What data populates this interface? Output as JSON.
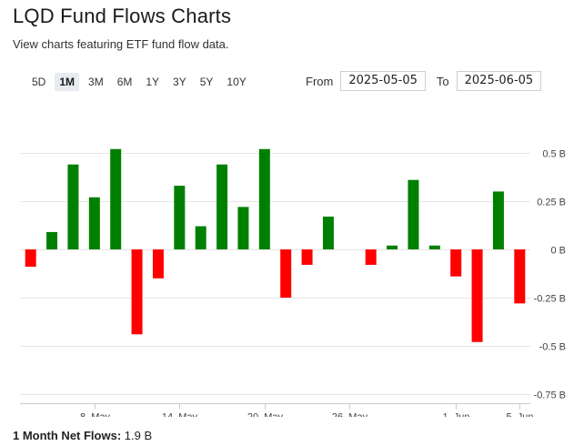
{
  "header": {
    "title": "LQD Fund Flows Charts",
    "subtitle": "View charts featuring ETF fund flow data."
  },
  "ranges": [
    {
      "label": "5D",
      "active": false
    },
    {
      "label": "1M",
      "active": true
    },
    {
      "label": "3M",
      "active": false
    },
    {
      "label": "6M",
      "active": false
    },
    {
      "label": "1Y",
      "active": false
    },
    {
      "label": "3Y",
      "active": false
    },
    {
      "label": "5Y",
      "active": false
    },
    {
      "label": "10Y",
      "active": false
    }
  ],
  "date_range": {
    "from_label": "From",
    "from_value": "2025-05-05",
    "to_label": "To",
    "to_value": "2025-06-05"
  },
  "footer": {
    "net_label": "1 Month Net Flows:",
    "net_value": "1.9 B"
  },
  "colors": {
    "positive": "#008000",
    "negative": "#ff0000"
  },
  "chart_data": {
    "type": "bar",
    "title": "",
    "xlabel": "",
    "ylabel": "",
    "ylim": [
      -0.75,
      0.5
    ],
    "grid": true,
    "y_ticks": [
      {
        "value": 0.5,
        "label": "0.5 B"
      },
      {
        "value": 0.25,
        "label": "0.25 B"
      },
      {
        "value": 0,
        "label": "0 B"
      },
      {
        "value": -0.25,
        "label": "-0.25 B"
      },
      {
        "value": -0.5,
        "label": "-0.5 B"
      },
      {
        "value": -0.75,
        "label": "-0.75 B"
      }
    ],
    "x_ticks": [
      {
        "index": 3,
        "label": "8. May"
      },
      {
        "index": 7,
        "label": "14. May"
      },
      {
        "index": 11,
        "label": "20. May"
      },
      {
        "index": 15,
        "label": "26. May"
      },
      {
        "index": 20,
        "label": "1. Jun"
      },
      {
        "index": 23,
        "label": "5. Jun"
      }
    ],
    "values": [
      -0.09,
      0.09,
      0.44,
      0.27,
      0.52,
      -0.44,
      -0.15,
      0.33,
      0.12,
      0.44,
      0.22,
      0.52,
      -0.25,
      -0.08,
      0.17,
      0.0,
      -0.08,
      0.02,
      0.36,
      0.02,
      -0.14,
      -0.48,
      0.3,
      -0.28
    ]
  }
}
